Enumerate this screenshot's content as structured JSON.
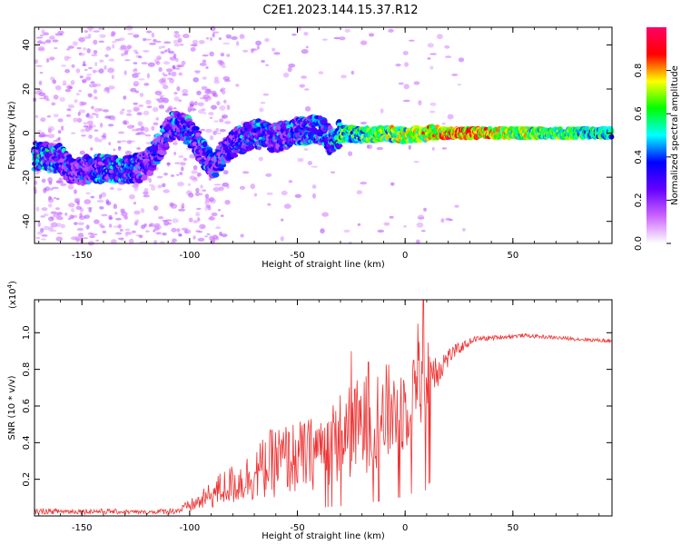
{
  "title": "C2E1.2023.144.15.37.R12",
  "chart_data": [
    {
      "type": "heatmap",
      "title": "",
      "xlabel": "Height of straight line (km)",
      "ylabel": "Frequency (Hz)",
      "xlim": [
        -172,
        96
      ],
      "ylim": [
        -50,
        48
      ],
      "xticks": [
        -150,
        -100,
        -50,
        0,
        50
      ],
      "xtick_labels": [
        "-150",
        "-100",
        "-50",
        "0",
        "50"
      ],
      "yticks": [
        -40,
        -20,
        0,
        20,
        40
      ],
      "ytick_labels": [
        "-40",
        "-20",
        "0",
        "20",
        "40"
      ],
      "trace": [
        {
          "x": -172,
          "f": -10.5,
          "amp": 0.45
        },
        {
          "x": -160,
          "f": -11.5,
          "amp": 0.4
        },
        {
          "x": -155,
          "f": -17,
          "amp": 0.3
        },
        {
          "x": -140,
          "f": -16,
          "amp": 0.4
        },
        {
          "x": -130,
          "f": -17,
          "amp": 0.42
        },
        {
          "x": -120,
          "f": -15,
          "amp": 0.3
        },
        {
          "x": -108,
          "f": 4,
          "amp": 0.35
        },
        {
          "x": -100,
          "f": 1,
          "amp": 0.38
        },
        {
          "x": -90,
          "f": -15,
          "amp": 0.35
        },
        {
          "x": -80,
          "f": -5,
          "amp": 0.35
        },
        {
          "x": -70,
          "f": 0,
          "amp": 0.4
        },
        {
          "x": -60,
          "f": -2,
          "amp": 0.38
        },
        {
          "x": -50,
          "f": 1,
          "amp": 0.4
        },
        {
          "x": -40,
          "f": 2,
          "amp": 0.45
        },
        {
          "x": -35,
          "f": -3,
          "amp": 0.4
        },
        {
          "x": -30,
          "f": 0,
          "amp": 0.55
        },
        {
          "x": -20,
          "f": -1,
          "amp": 0.6
        },
        {
          "x": -10,
          "f": 0,
          "amp": 0.65
        },
        {
          "x": 0,
          "f": -1,
          "amp": 0.7
        },
        {
          "x": 10,
          "f": 0,
          "amp": 0.75
        },
        {
          "x": 20,
          "f": 0,
          "amp": 0.88
        },
        {
          "x": 30,
          "f": 0,
          "amp": 0.85
        },
        {
          "x": 50,
          "f": 0,
          "amp": 0.72
        },
        {
          "x": 70,
          "f": 0,
          "amp": 0.65
        },
        {
          "x": 96,
          "f": 0,
          "amp": 0.55
        }
      ],
      "colorbar": {
        "label": "Normalized spectral amplitude",
        "range": [
          0,
          1
        ],
        "ticks": [
          0.0,
          0.2,
          0.4,
          0.6,
          0.8
        ],
        "tick_labels": [
          "0.0",
          "0.2",
          "0.4",
          "0.6",
          "0.8"
        ],
        "colors": [
          "#ffffff",
          "#cc66ff",
          "#6600ff",
          "#0000ff",
          "#00ffff",
          "#00ff00",
          "#ffff00",
          "#ff0000",
          "#ff0066"
        ]
      }
    },
    {
      "type": "line",
      "title": "",
      "xlabel": "Height of straight line (km)",
      "ylabel": "SNR (10 * v/v)",
      "exponent_label": "(x10",
      "exponent_sup": "4",
      "exponent_close": ")",
      "xlim": [
        -172,
        96
      ],
      "ylim": [
        0,
        1.18
      ],
      "xticks": [
        -150,
        -100,
        -50,
        0,
        50
      ],
      "xtick_labels": [
        "-150",
        "-100",
        "-50",
        "0",
        "50"
      ],
      "yticks": [
        0.2,
        0.4,
        0.6,
        0.8,
        1.0
      ],
      "ytick_labels": [
        "0.2",
        "0.4",
        "0.6",
        "0.8",
        "1.0"
      ],
      "color": "#ee3333",
      "envelope": [
        {
          "x": -172,
          "base": 0.01,
          "amp": 0.03
        },
        {
          "x": -140,
          "base": 0.01,
          "amp": 0.03
        },
        {
          "x": -120,
          "base": 0.01,
          "amp": 0.02
        },
        {
          "x": -105,
          "base": 0.01,
          "amp": 0.04
        },
        {
          "x": -95,
          "base": 0.03,
          "amp": 0.1
        },
        {
          "x": -85,
          "base": 0.05,
          "amp": 0.2
        },
        {
          "x": -75,
          "base": 0.07,
          "amp": 0.25
        },
        {
          "x": -60,
          "base": 0.1,
          "amp": 0.4
        },
        {
          "x": -45,
          "base": 0.13,
          "amp": 0.4
        },
        {
          "x": -30,
          "base": 0.18,
          "amp": 0.5
        },
        {
          "x": -20,
          "base": 0.22,
          "amp": 0.55
        },
        {
          "x": -10,
          "base": 0.28,
          "amp": 0.55
        },
        {
          "x": 0,
          "base": 0.35,
          "amp": 0.5
        },
        {
          "x": 8,
          "base": 0.5,
          "amp": 0.6
        },
        {
          "x": 15,
          "base": 0.7,
          "amp": 0.2
        },
        {
          "x": 22,
          "base": 0.85,
          "amp": 0.08
        },
        {
          "x": 32,
          "base": 0.95,
          "amp": 0.03
        },
        {
          "x": 55,
          "base": 0.975,
          "amp": 0.02
        },
        {
          "x": 80,
          "base": 0.955,
          "amp": 0.02
        },
        {
          "x": 96,
          "base": 0.945,
          "amp": 0.02
        }
      ],
      "spikes": [
        {
          "x": 8.5,
          "y": 1.18
        },
        {
          "x": 6,
          "y": 1.05
        },
        {
          "x": 4,
          "y": 0.85
        },
        {
          "x": 9.5,
          "y": 0.14
        },
        {
          "x": -3,
          "y": 0.1
        },
        {
          "x": -25,
          "y": 0.9
        },
        {
          "x": -17,
          "y": 0.84
        }
      ]
    }
  ]
}
